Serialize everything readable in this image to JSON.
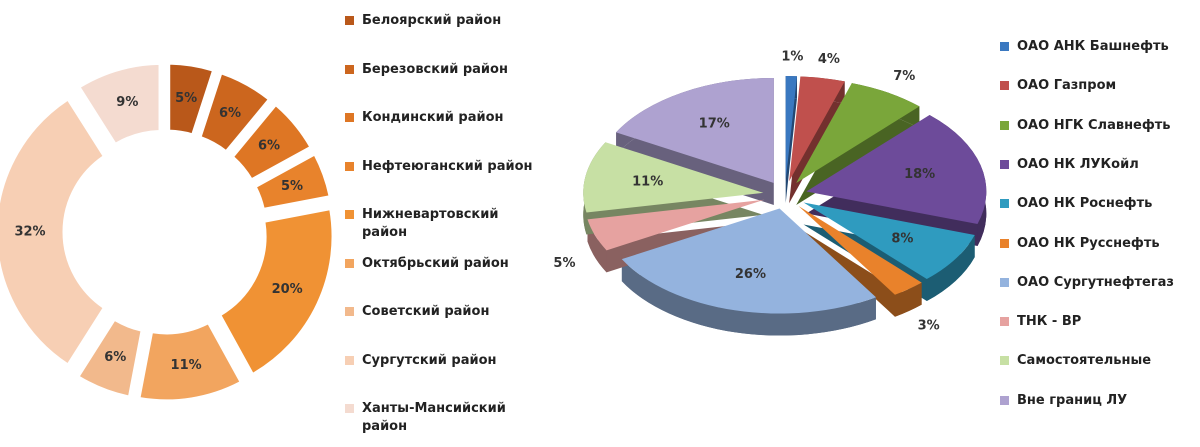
{
  "chart_data": [
    {
      "type": "donut",
      "categories": [
        "Белоярский район",
        "Березовский район",
        "Кондинский район",
        "Нефтеюганский район",
        "Нижневартовский район",
        "Октябрьский район",
        "Советский район",
        "Сургутский район",
        "Ханты-Мансийский район"
      ],
      "values": [
        5,
        6,
        6,
        5,
        20,
        11,
        6,
        32,
        9
      ],
      "value_labels": [
        "5%",
        "6%",
        "6%",
        "5%",
        "20%",
        "11%",
        "6%",
        "32%",
        "9%"
      ],
      "colors": [
        "#b9581a",
        "#cc661e",
        "#de7624",
        "#e8832c",
        "#f09234",
        "#f2a55f",
        "#f2b98c",
        "#f7cfb4",
        "#f4dbd0"
      ]
    },
    {
      "type": "pie",
      "categories": [
        "ОАО АНК Башнефть",
        "ОАО Газпром",
        "ОАО НГК Славнефть",
        "ОАО НК ЛУКойл",
        "ОАО НК Роснефть",
        "ОАО НК Русснефть",
        "ОАО Сургутнефтегаз",
        "ТНК - ВР",
        "Самостоятельные",
        "Вне границ ЛУ"
      ],
      "values": [
        1,
        4,
        7,
        18,
        8,
        3,
        26,
        5,
        11,
        17
      ],
      "value_labels": [
        "1%",
        "4%",
        "7%",
        "18%",
        "8%",
        "3%",
        "26%",
        "5%",
        "11%",
        "17%"
      ],
      "colors": [
        "#3a78c0",
        "#c0504d",
        "#7aa63a",
        "#6d4b9a",
        "#2f9bbf",
        "#e9822b",
        "#94b3de",
        "#e6a2a0",
        "#c7e0a4",
        "#aea2d0"
      ]
    }
  ]
}
